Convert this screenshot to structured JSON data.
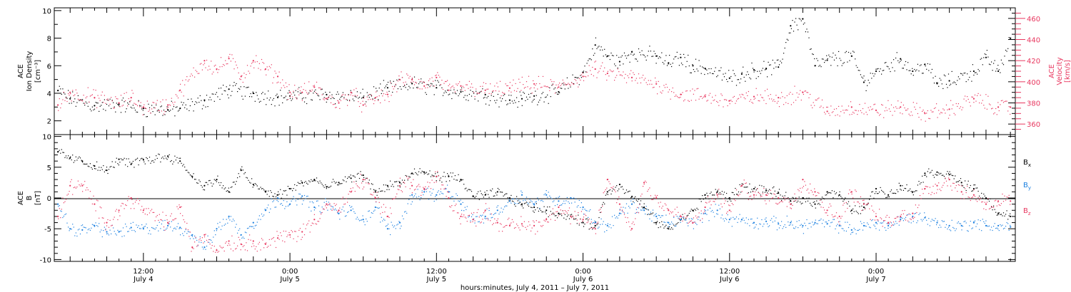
{
  "colors": {
    "density": "#000000",
    "velocity": "#e8375f",
    "bx": "#000000",
    "by": "#1a7fe0",
    "bz": "#e8375f",
    "axis": "#000000"
  },
  "panel_top": {
    "ylabel_left": [
      "ACE",
      "Ion Density",
      "[cm⁻³]"
    ],
    "ylabel_right": [
      "ACE",
      "Velocity",
      "[km/s]"
    ],
    "left_ticks": [
      "2",
      "4",
      "6",
      "8",
      "10"
    ],
    "right_ticks": [
      "360",
      "380",
      "400",
      "420",
      "440",
      "460"
    ]
  },
  "panel_bottom": {
    "ylabel_left": [
      "ACE",
      "B",
      "[nT]"
    ],
    "left_ticks": [
      "-10",
      "-5",
      "0",
      "5",
      "10"
    ],
    "legend": {
      "bx": "B",
      "bx_sub": "x",
      "by": "B",
      "by_sub": "y",
      "bz": "B",
      "bz_sub": "z"
    }
  },
  "time_axis": {
    "ticks": [
      {
        "time": "12:00",
        "date": "July 4"
      },
      {
        "time": "0:00",
        "date": "July 5"
      },
      {
        "time": "12:00",
        "date": "July 5"
      },
      {
        "time": "0:00",
        "date": "July 6"
      },
      {
        "time": "12:00",
        "date": "July 6"
      },
      {
        "time": "0:00",
        "date": "July 7"
      }
    ],
    "title": "hours:minutes, July  4, 2011 – July  7, 2011"
  },
  "chart_data": [
    {
      "type": "scatter",
      "x_unit": "hours since 2011-07-04 00:00",
      "xlim": [
        4.7,
        83.4
      ],
      "series": [
        {
          "name": "Ion Density",
          "axis": "left",
          "ylim": [
            1,
            10.2
          ],
          "x": [
            5,
            6,
            8,
            10,
            12,
            14,
            15,
            17,
            19,
            21,
            23,
            24,
            27,
            30,
            32,
            34,
            36,
            38,
            40,
            42,
            43,
            44,
            46,
            48,
            49,
            50,
            51,
            52,
            54,
            55,
            56,
            57,
            58,
            60,
            61,
            62,
            63,
            64,
            65,
            66,
            67,
            68,
            70,
            71,
            72,
            74,
            75,
            76,
            77,
            78,
            80,
            81,
            82,
            83
          ],
          "values": [
            4.2,
            3.6,
            3.1,
            3.2,
            2.9,
            2.8,
            2.9,
            3.5,
            4.3,
            4.0,
            3.7,
            3.8,
            3.9,
            3.7,
            4.4,
            4.7,
            4.4,
            4.1,
            3.9,
            3.5,
            3.6,
            3.8,
            4.1,
            5.5,
            7.5,
            6.7,
            6.3,
            7.0,
            6.7,
            6.2,
            6.6,
            6.0,
            5.8,
            5.1,
            5.4,
            5.7,
            5.8,
            5.9,
            8.9,
            9.4,
            6.0,
            6.4,
            6.7,
            4.8,
            5.6,
            6.5,
            5.6,
            6.1,
            4.7,
            4.9,
            5.6,
            6.6,
            5.6,
            8.0
          ]
        },
        {
          "name": "Velocity",
          "axis": "right",
          "ylim": [
            350,
            470
          ],
          "x": [
            5,
            6,
            8,
            10,
            11,
            12,
            14,
            15,
            17,
            18,
            19,
            20,
            21,
            22,
            23,
            24,
            25,
            26,
            27,
            28,
            29,
            30,
            31,
            32,
            33,
            34,
            35,
            36,
            37,
            38,
            40,
            42,
            44,
            46,
            48,
            49,
            50,
            52,
            54,
            56,
            58,
            60,
            62,
            64,
            66,
            68,
            70,
            72,
            74,
            76,
            78,
            80,
            82,
            83
          ],
          "values": [
            378,
            390,
            385,
            380,
            385,
            376,
            378,
            392,
            420,
            412,
            422,
            405,
            420,
            412,
            405,
            390,
            390,
            395,
            384,
            380,
            390,
            378,
            385,
            388,
            402,
            402,
            396,
            404,
            392,
            396,
            392,
            394,
            398,
            395,
            405,
            412,
            408,
            404,
            398,
            388,
            386,
            382,
            386,
            385,
            390,
            372,
            376,
            373,
            376,
            370,
            374,
            384,
            376,
            376
          ]
        }
      ]
    },
    {
      "type": "scatter",
      "x_unit": "hours since 2011-07-04 00:00",
      "xlim": [
        4.7,
        83.4
      ],
      "ylim": [
        -10.3,
        10.3
      ],
      "series": [
        {
          "name": "Bx",
          "x": [
            5,
            6,
            7,
            8,
            9,
            10,
            11,
            12,
            14,
            15,
            16,
            17,
            18,
            19,
            20,
            21,
            22,
            23,
            24,
            25,
            26,
            27,
            28,
            29,
            30,
            31,
            32,
            33,
            34,
            35,
            36,
            37,
            38,
            39,
            40,
            41,
            42,
            43,
            44,
            45,
            46,
            47,
            48,
            49,
            50,
            51,
            52,
            53,
            54,
            55,
            56,
            57,
            58,
            59,
            60,
            61,
            62,
            63,
            64,
            65,
            66,
            67,
            68,
            69,
            70,
            71,
            72,
            73,
            74,
            75,
            76,
            77,
            78,
            79,
            80,
            81,
            82,
            83
          ],
          "values": [
            7.5,
            6.5,
            6.0,
            5.2,
            4.5,
            6.3,
            5.5,
            6.2,
            6.8,
            6.0,
            3.5,
            2.0,
            3.0,
            1.0,
            4.5,
            2.2,
            1.0,
            0.5,
            1.5,
            2.5,
            3.0,
            1.8,
            2.5,
            3.2,
            3.7,
            1.0,
            2.0,
            2.5,
            4.0,
            4.2,
            3.5,
            3.5,
            3.0,
            0.3,
            0.5,
            1.0,
            0.0,
            -1.0,
            -1.5,
            -2.0,
            -2.5,
            -3.0,
            -4.0,
            -4.5,
            1.0,
            2.2,
            0.2,
            -1.5,
            -4.0,
            -5.0,
            -3.5,
            -2.0,
            0.5,
            1.0,
            0.0,
            2.0,
            1.5,
            1.2,
            0.8,
            -0.5,
            0.0,
            -1.0,
            1.0,
            0.5,
            -2.0,
            -1.5,
            1.5,
            0.5,
            2.0,
            1.0,
            4.0,
            4.2,
            3.8,
            2.5,
            1.5,
            0.0,
            -2.5,
            -3.0
          ]
        },
        {
          "name": "By",
          "x": [
            5,
            6,
            7,
            8,
            9,
            10,
            11,
            12,
            14,
            15,
            16,
            17,
            18,
            19,
            20,
            21,
            22,
            23,
            24,
            25,
            26,
            27,
            28,
            29,
            30,
            31,
            32,
            33,
            34,
            35,
            36,
            37,
            38,
            39,
            40,
            41,
            42,
            43,
            44,
            45,
            46,
            47,
            48,
            49,
            50,
            51,
            52,
            53,
            54,
            55,
            56,
            57,
            58,
            59,
            60,
            61,
            62,
            63,
            64,
            65,
            66,
            67,
            68,
            69,
            70,
            71,
            72,
            73,
            74,
            75,
            76,
            77,
            78,
            79,
            80,
            81,
            82,
            83
          ],
          "values": [
            -1.0,
            -5.0,
            -5.2,
            -4.5,
            -5.5,
            -5.5,
            -4.8,
            -5.0,
            -4.5,
            -4.8,
            -6.0,
            -8.0,
            -5.0,
            -3.0,
            -6.0,
            -4.0,
            -2.0,
            0.0,
            -1.0,
            0.3,
            -1.5,
            -1.0,
            -2.5,
            -2.0,
            -3.5,
            -1.5,
            -5.0,
            -4.0,
            0.5,
            1.0,
            0.5,
            1.0,
            -1.0,
            -3.5,
            -3.0,
            -2.0,
            -0.5,
            0.5,
            -1.0,
            0.5,
            -0.5,
            0.0,
            -1.5,
            -4.0,
            -4.5,
            -2.5,
            -1.0,
            -2.0,
            -3.0,
            -4.0,
            -3.5,
            -4.0,
            -2.5,
            -2.0,
            -3.5,
            -3.5,
            -4.0,
            -3.8,
            -4.2,
            -4.0,
            -4.5,
            -4.0,
            -4.2,
            -4.5,
            -5.2,
            -4.5,
            -4.0,
            -4.5,
            -3.5,
            -3.0,
            -3.2,
            -4.0,
            -4.5,
            -4.5,
            -4.0,
            -4.5,
            -4.5,
            -4.7
          ]
        },
        {
          "name": "Bz",
          "x": [
            5,
            6,
            7,
            8,
            9,
            10,
            11,
            12,
            14,
            15,
            16,
            17,
            18,
            19,
            20,
            21,
            22,
            23,
            24,
            25,
            26,
            27,
            28,
            29,
            30,
            31,
            32,
            33,
            34,
            35,
            36,
            37,
            38,
            39,
            40,
            41,
            42,
            43,
            44,
            45,
            46,
            47,
            48,
            49,
            50,
            51,
            52,
            53,
            54,
            55,
            56,
            57,
            58,
            59,
            60,
            61,
            62,
            63,
            64,
            65,
            66,
            67,
            68,
            69,
            70,
            71,
            72,
            73,
            74,
            75,
            76,
            77,
            78,
            79,
            80,
            81,
            82,
            83
          ],
          "values": [
            -3.0,
            2.0,
            2.0,
            -1.0,
            -4.0,
            -2.0,
            0.0,
            -2.0,
            -4.0,
            -1.5,
            -8.0,
            -6.0,
            -8.5,
            -7.0,
            -7.5,
            -7.0,
            -7.5,
            -6.5,
            -6.0,
            -5.5,
            -3.5,
            -1.0,
            -2.0,
            1.0,
            3.0,
            0.0,
            -3.0,
            2.0,
            2.0,
            1.5,
            3.5,
            0.0,
            -3.0,
            -3.5,
            -2.0,
            -4.0,
            -4.5,
            -4.2,
            -4.5,
            -3.5,
            -1.5,
            -3.0,
            -3.5,
            -5.0,
            3.0,
            -1.0,
            -5.0,
            2.5,
            0.0,
            -2.0,
            -3.0,
            -4.0,
            -1.5,
            0.5,
            -2.0,
            2.0,
            0.5,
            0.5,
            0.0,
            -1.0,
            3.0,
            1.0,
            -2.0,
            -3.0,
            1.0,
            -1.0,
            -3.0,
            -4.0,
            -3.0,
            -2.5,
            1.5,
            2.0,
            3.0,
            1.0,
            0.5,
            -1.0,
            -0.5,
            -0.5
          ]
        }
      ]
    }
  ]
}
